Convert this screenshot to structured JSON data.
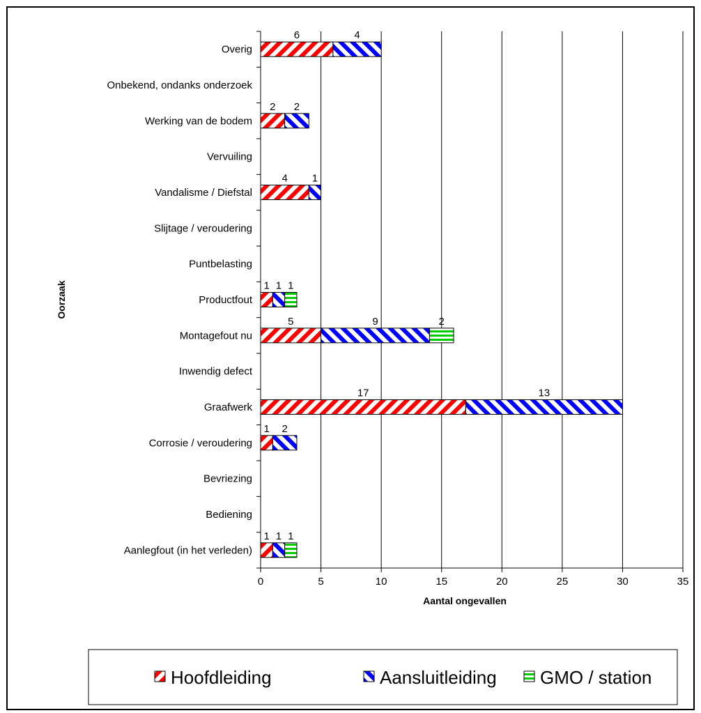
{
  "chart_data": {
    "type": "bar",
    "orientation": "horizontal",
    "stacked": true,
    "categories": [
      "Overig",
      "Onbekend, ondanks onderzoek",
      "Werking van de bodem",
      "Vervuiling",
      "Vandalisme / Diefstal",
      "Slijtage / veroudering",
      "Puntbelasting",
      "Productfout",
      "Montagefout nu",
      "Inwendig defect",
      "Graafwerk",
      "Corrosie / veroudering",
      "Bevriezing",
      "Bediening",
      "Aanlegfout (in het verleden)"
    ],
    "series": [
      {
        "name": "Hoofdleiding",
        "color": "#ff0000",
        "pattern": "diagonal-up",
        "values": [
          6,
          0,
          2,
          0,
          4,
          0,
          0,
          1,
          5,
          0,
          17,
          1,
          0,
          0,
          1
        ]
      },
      {
        "name": "Aansluitleiding",
        "color": "#0000ff",
        "pattern": "diagonal-down",
        "values": [
          4,
          0,
          2,
          0,
          1,
          0,
          0,
          1,
          9,
          0,
          13,
          2,
          0,
          0,
          1
        ]
      },
      {
        "name": "GMO / station",
        "color": "#00cc00",
        "pattern": "horizontal",
        "values": [
          0,
          0,
          0,
          0,
          0,
          0,
          0,
          1,
          2,
          0,
          0,
          0,
          0,
          0,
          1
        ]
      }
    ],
    "xlabel": "Aantal ongevallen",
    "ylabel": "Oorzaak",
    "xlim": [
      0,
      35
    ],
    "xticks": [
      0,
      5,
      10,
      15,
      20,
      25,
      30,
      35
    ],
    "grid": "vertical",
    "legend": "bottom",
    "data_labels": true
  }
}
